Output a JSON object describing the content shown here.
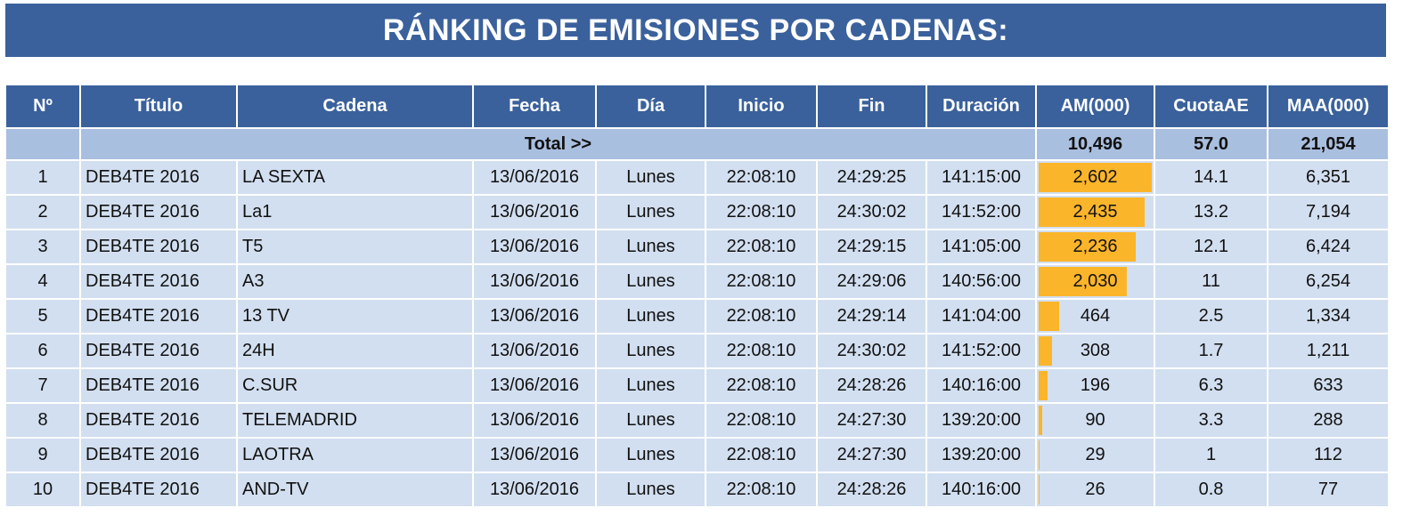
{
  "title": "RÁNKING DE EMISIONES POR CADENAS:",
  "colors": {
    "header": "#3a619c",
    "total_row": "#a9bfdf",
    "row": "#d2dff0",
    "bar": "#fbb52b"
  },
  "columns": [
    "Nº",
    "Título",
    "Cadena",
    "Fecha",
    "Día",
    "Inicio",
    "Fin",
    "Duración",
    "AM(000)",
    "CuotaAE",
    "MAA(000)"
  ],
  "total": {
    "label": "Total >>",
    "am": "10,496",
    "cuota": "57.0",
    "maa": "21,054"
  },
  "rows": [
    {
      "n": "1",
      "titulo": "DEB4TE 2016",
      "cadena": "LA SEXTA",
      "fecha": "13/06/2016",
      "dia": "Lunes",
      "inicio": "22:08:10",
      "fin": "24:29:25",
      "duracion": "141:15:00",
      "am": "2,602",
      "am_value": 2602,
      "cuota": "14.1",
      "maa": "6,351"
    },
    {
      "n": "2",
      "titulo": "DEB4TE 2016",
      "cadena": "La1",
      "fecha": "13/06/2016",
      "dia": "Lunes",
      "inicio": "22:08:10",
      "fin": "24:30:02",
      "duracion": "141:52:00",
      "am": "2,435",
      "am_value": 2435,
      "cuota": "13.2",
      "maa": "7,194"
    },
    {
      "n": "3",
      "titulo": "DEB4TE 2016",
      "cadena": "T5",
      "fecha": "13/06/2016",
      "dia": "Lunes",
      "inicio": "22:08:10",
      "fin": "24:29:15",
      "duracion": "141:05:00",
      "am": "2,236",
      "am_value": 2236,
      "cuota": "12.1",
      "maa": "6,424"
    },
    {
      "n": "4",
      "titulo": "DEB4TE 2016",
      "cadena": "A3",
      "fecha": "13/06/2016",
      "dia": "Lunes",
      "inicio": "22:08:10",
      "fin": "24:29:06",
      "duracion": "140:56:00",
      "am": "2,030",
      "am_value": 2030,
      "cuota": "11",
      "maa": "6,254"
    },
    {
      "n": "5",
      "titulo": "DEB4TE 2016",
      "cadena": "13 TV",
      "fecha": "13/06/2016",
      "dia": "Lunes",
      "inicio": "22:08:10",
      "fin": "24:29:14",
      "duracion": "141:04:00",
      "am": "464",
      "am_value": 464,
      "cuota": "2.5",
      "maa": "1,334"
    },
    {
      "n": "6",
      "titulo": "DEB4TE 2016",
      "cadena": "24H",
      "fecha": "13/06/2016",
      "dia": "Lunes",
      "inicio": "22:08:10",
      "fin": "24:30:02",
      "duracion": "141:52:00",
      "am": "308",
      "am_value": 308,
      "cuota": "1.7",
      "maa": "1,211"
    },
    {
      "n": "7",
      "titulo": "DEB4TE 2016",
      "cadena": "C.SUR",
      "fecha": "13/06/2016",
      "dia": "Lunes",
      "inicio": "22:08:10",
      "fin": "24:28:26",
      "duracion": "140:16:00",
      "am": "196",
      "am_value": 196,
      "cuota": "6.3",
      "maa": "633"
    },
    {
      "n": "8",
      "titulo": "DEB4TE 2016",
      "cadena": "TELEMADRID",
      "fecha": "13/06/2016",
      "dia": "Lunes",
      "inicio": "22:08:10",
      "fin": "24:27:30",
      "duracion": "139:20:00",
      "am": "90",
      "am_value": 90,
      "cuota": "3.3",
      "maa": "288"
    },
    {
      "n": "9",
      "titulo": "DEB4TE 2016",
      "cadena": "LAOTRA",
      "fecha": "13/06/2016",
      "dia": "Lunes",
      "inicio": "22:08:10",
      "fin": "24:27:30",
      "duracion": "139:20:00",
      "am": "29",
      "am_value": 29,
      "cuota": "1",
      "maa": "112"
    },
    {
      "n": "10",
      "titulo": "DEB4TE 2016",
      "cadena": "AND-TV",
      "fecha": "13/06/2016",
      "dia": "Lunes",
      "inicio": "22:08:10",
      "fin": "24:28:26",
      "duracion": "140:16:00",
      "am": "26",
      "am_value": 26,
      "cuota": "0.8",
      "maa": "77"
    }
  ]
}
